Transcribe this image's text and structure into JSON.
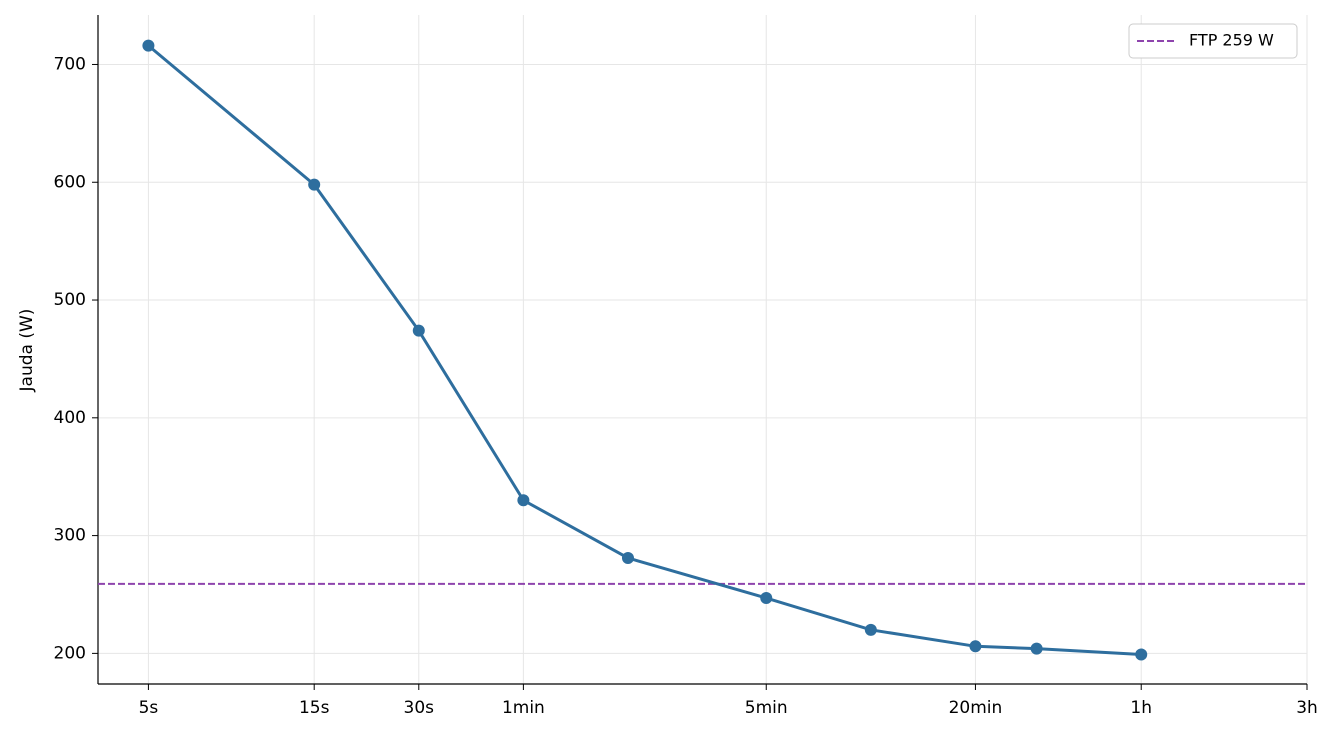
{
  "chart_data": {
    "type": "line",
    "y_label": "Jauda (W)",
    "x": [
      5,
      15,
      30,
      60,
      120,
      300,
      600,
      1200,
      1800,
      3600
    ],
    "series": [
      {
        "name": null,
        "color": "#2e6e9e",
        "values": [
          716,
          598,
          474,
          330,
          281,
          247,
          220,
          206,
          204,
          199
        ]
      }
    ],
    "hlines": [
      {
        "value": 259,
        "label": "FTP 259 W",
        "color": "#8e44ad"
      }
    ],
    "x_scale": "log",
    "xlim": [
      3.58,
      10800
    ],
    "ylim": [
      174,
      742
    ],
    "xticks": [
      {
        "value": 5,
        "label": "5s"
      },
      {
        "value": 15,
        "label": "15s"
      },
      {
        "value": 30,
        "label": "30s"
      },
      {
        "value": 60,
        "label": "1min"
      },
      {
        "value": 300,
        "label": "5min"
      },
      {
        "value": 1200,
        "label": "20min"
      },
      {
        "value": 3600,
        "label": "1h"
      },
      {
        "value": 10800,
        "label": "3h"
      }
    ],
    "yticks": [
      200,
      300,
      400,
      500,
      600,
      700
    ],
    "grid": true,
    "legend": "upper right"
  }
}
